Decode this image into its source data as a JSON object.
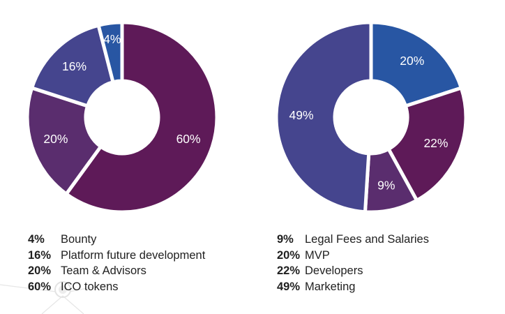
{
  "colors": {
    "maroon": "#5e1a58",
    "purple": "#5a2d6e",
    "indigo": "#45458e",
    "blue": "#2856a3"
  },
  "chart_data": [
    {
      "type": "pie",
      "donut": true,
      "title": "",
      "slices": [
        {
          "label": "ICO tokens",
          "value": 60,
          "display": "60%",
          "color": "#5e1a58"
        },
        {
          "label": "Team & Advisors",
          "value": 20,
          "display": "20%",
          "color": "#5a2d6e"
        },
        {
          "label": "Platform future development",
          "value": 16,
          "display": "16%",
          "color": "#45458e"
        },
        {
          "label": "Bounty",
          "value": 4,
          "display": "4%",
          "color": "#2856a3"
        }
      ],
      "legend": [
        {
          "pct": "4%",
          "label": "Bounty"
        },
        {
          "pct": "16%",
          "label": "Platform future development"
        },
        {
          "pct": "20%",
          "label": "Team & Advisors"
        },
        {
          "pct": "60%",
          "label": "ICO tokens"
        }
      ],
      "legend_position": "bottom"
    },
    {
      "type": "pie",
      "donut": true,
      "title": "",
      "slices": [
        {
          "label": "MVP",
          "value": 20,
          "display": "20%",
          "color": "#2856a3"
        },
        {
          "label": "Developers",
          "value": 22,
          "display": "22%",
          "color": "#5e1a58"
        },
        {
          "label": "Legal Fees and Salaries",
          "value": 9,
          "display": "9%",
          "color": "#5a2d6e"
        },
        {
          "label": "Marketing",
          "value": 49,
          "display": "49%",
          "color": "#45458e"
        }
      ],
      "legend": [
        {
          "pct": "9%",
          "label": "Legal Fees and Salaries"
        },
        {
          "pct": "20%",
          "label": "MVP"
        },
        {
          "pct": "22%",
          "label": "Developers"
        },
        {
          "pct": "49%",
          "label": "Marketing"
        }
      ],
      "legend_position": "bottom"
    }
  ]
}
